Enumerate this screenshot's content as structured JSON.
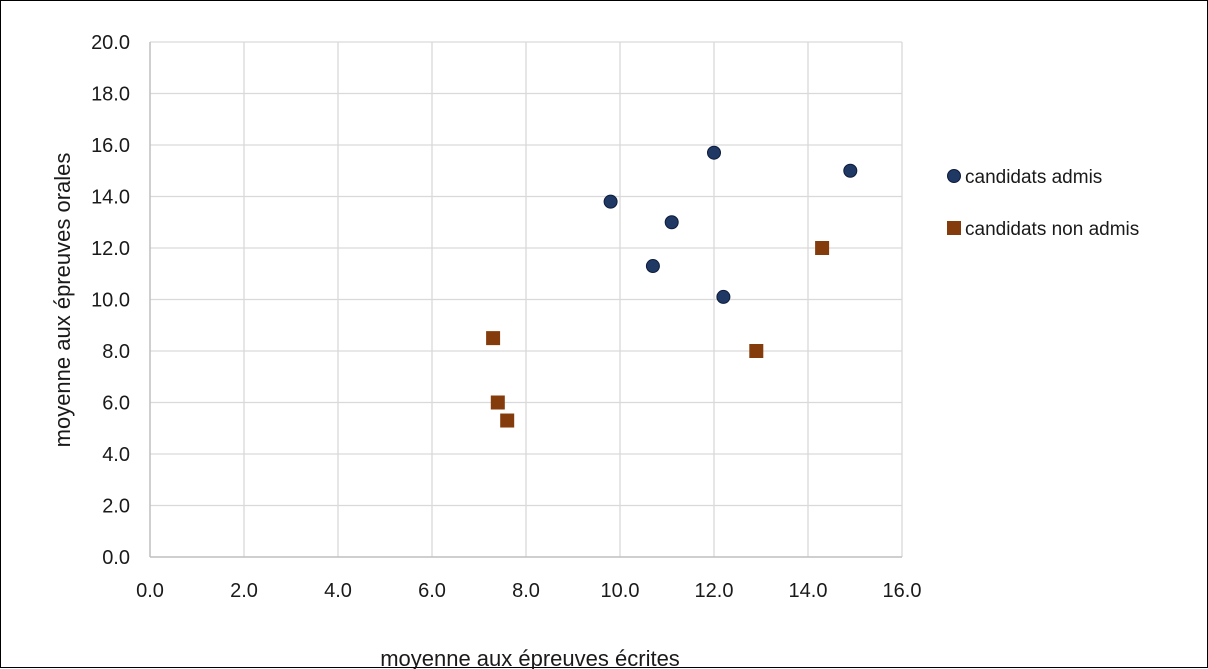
{
  "chart_data": {
    "type": "scatter",
    "xlabel": "moyenne aux épreuves écrites",
    "ylabel": "moyenne aux épreuves orales",
    "xlim": [
      0,
      16
    ],
    "ylim": [
      0,
      20
    ],
    "x_ticks": [
      "0.0",
      "2.0",
      "4.0",
      "6.0",
      "8.0",
      "10.0",
      "12.0",
      "14.0",
      "16.0"
    ],
    "y_ticks": [
      "0.0",
      "2.0",
      "4.0",
      "6.0",
      "8.0",
      "10.0",
      "12.0",
      "14.0",
      "16.0",
      "18.0",
      "20.0"
    ],
    "x_tick_step": 2,
    "y_tick_step": 2,
    "grid": true,
    "legend_position": "right",
    "series": [
      {
        "name": "candidats admis",
        "marker": "circle",
        "color": "#1f3864",
        "points": [
          {
            "x": 9.8,
            "y": 13.8
          },
          {
            "x": 10.7,
            "y": 11.3
          },
          {
            "x": 11.1,
            "y": 13.0
          },
          {
            "x": 12.0,
            "y": 15.7
          },
          {
            "x": 12.2,
            "y": 10.1
          },
          {
            "x": 14.9,
            "y": 15.0
          }
        ]
      },
      {
        "name": "candidats non admis",
        "marker": "square",
        "color": "#843c0c",
        "points": [
          {
            "x": 7.3,
            "y": 8.5
          },
          {
            "x": 7.4,
            "y": 6.0
          },
          {
            "x": 7.6,
            "y": 5.3
          },
          {
            "x": 12.9,
            "y": 8.0
          },
          {
            "x": 14.3,
            "y": 12.0
          }
        ]
      }
    ]
  }
}
